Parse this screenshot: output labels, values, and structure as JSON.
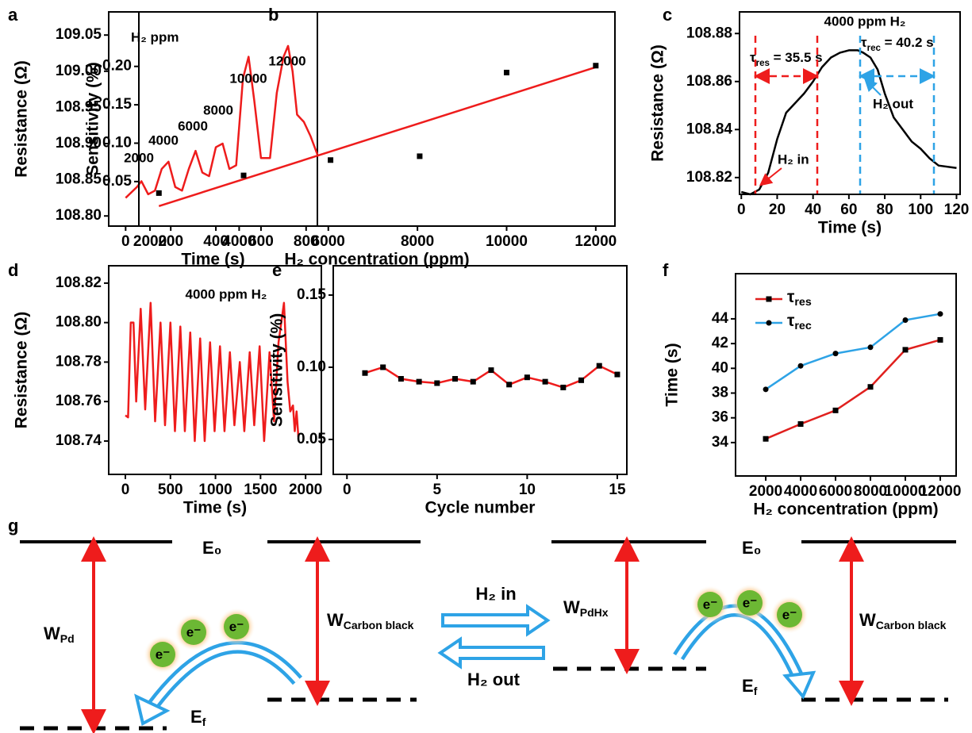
{
  "chart_data": [
    {
      "type": "line",
      "panel_label": "a",
      "xlabel": "Time (s)",
      "ylabel": "Resistance (Ω)",
      "x": [
        0,
        50,
        70,
        100,
        130,
        160,
        190,
        220,
        250,
        280,
        310,
        340,
        370,
        400,
        430,
        460,
        490,
        520,
        545,
        570,
        600,
        640,
        670,
        700,
        720,
        740,
        760,
        790,
        820,
        850
      ],
      "series": [
        {
          "color": "#ee1c1c",
          "values": [
            108.825,
            108.84,
            108.848,
            108.83,
            108.835,
            108.865,
            108.875,
            108.84,
            108.835,
            108.865,
            108.89,
            108.86,
            108.855,
            108.895,
            108.9,
            108.865,
            108.87,
            108.99,
            109.02,
            108.96,
            108.88,
            108.88,
            108.97,
            109.02,
            109.035,
            109.0,
            108.94,
            108.93,
            108.91,
            108.885
          ]
        }
      ],
      "xlim": [
        -75,
        850
      ],
      "xticks": [
        0,
        200,
        400,
        600,
        800
      ],
      "ylim": [
        108.786,
        109.082
      ],
      "yticks": [
        {
          "value": 108.8,
          "label": "108.80"
        },
        108.85,
        {
          "value": 108.9,
          "label": "108.90"
        },
        108.95,
        {
          "value": 109,
          "label": "109.00"
        },
        109.05
      ],
      "annotations": [
        "H₂ ppm",
        "2000",
        "4000",
        "6000",
        "8000",
        "10000",
        "12000"
      ]
    },
    {
      "type": "scatter",
      "panel_label": "b",
      "xlabel": "H₂ concentration (ppm)",
      "ylabel": "Sensitivity (%)",
      "x": [
        2200,
        4100,
        6050,
        8050,
        10000,
        12000
      ],
      "series": [
        {
          "color": "#000000",
          "marker": "square",
          "values": [
            0.035,
            0.058,
            0.078,
            0.083,
            0.192,
            0.201
          ]
        }
      ],
      "fit": {
        "color": "#ee1c1c",
        "x": [
          2200,
          12000
        ],
        "values": [
          0.018,
          0.199
        ]
      },
      "xlim": [
        1750,
        12430
      ],
      "xticks": [
        2000,
        4000,
        6000,
        8000,
        10000,
        12000
      ],
      "ylim": [
        -0.008,
        0.271
      ],
      "yticks": [
        0.05,
        {
          "value": 0.1,
          "label": "0.10"
        },
        0.15,
        {
          "value": 0.2,
          "label": "0.20"
        }
      ]
    },
    {
      "type": "line",
      "panel_label": "c",
      "xlabel": "Time (s)",
      "ylabel": "Resistance (Ω)",
      "x": [
        0,
        5,
        10,
        15,
        20,
        25,
        30,
        35,
        40,
        45,
        50,
        55,
        60,
        65,
        68,
        72,
        76,
        80,
        85,
        90,
        95,
        100,
        105,
        110,
        120
      ],
      "series": [
        {
          "color": "#000000",
          "values": [
            108.814,
            108.813,
            108.815,
            108.822,
            108.836,
            108.847,
            108.851,
            108.855,
            108.86,
            108.866,
            108.87,
            108.872,
            108.873,
            108.873,
            108.872,
            108.87,
            108.865,
            108.855,
            108.845,
            108.84,
            108.835,
            108.832,
            108.828,
            108.825,
            108.824
          ]
        }
      ],
      "xlim": [
        -1,
        122
      ],
      "xticks": [
        0,
        20,
        40,
        60,
        80,
        100,
        120
      ],
      "ylim": [
        108.813,
        108.889
      ],
      "yticks": [
        108.82,
        108.84,
        108.86,
        108.88
      ],
      "annotations": [
        {
          "base": "τ",
          "sub": "res",
          "tail": " = 35.5 s"
        },
        "4000 ppm H₂",
        {
          "base": "τ",
          "sub": "rec",
          "tail": " = 40.2 s"
        },
        "H₂ in",
        "H₂ out"
      ]
    },
    {
      "type": "line",
      "panel_label": "d",
      "xlabel": "Time (s)",
      "ylabel": "Resistance (Ω)",
      "x": [
        0,
        30,
        60,
        90,
        120,
        170,
        220,
        280,
        330,
        390,
        440,
        500,
        550,
        610,
        660,
        720,
        770,
        830,
        880,
        940,
        990,
        1050,
        1100,
        1160,
        1210,
        1270,
        1320,
        1380,
        1430,
        1490,
        1540,
        1600,
        1650,
        1700,
        1760,
        1800,
        1830,
        1860,
        1880,
        1900,
        1920
      ],
      "series": [
        {
          "color": "#ee1c1c",
          "values": [
            108.753,
            108.752,
            108.8,
            108.8,
            108.76,
            108.807,
            108.756,
            108.81,
            108.75,
            108.8,
            108.748,
            108.8,
            108.745,
            108.798,
            108.745,
            108.795,
            108.74,
            108.792,
            108.74,
            108.79,
            108.745,
            108.788,
            108.745,
            108.785,
            108.748,
            108.78,
            108.745,
            108.785,
            108.748,
            108.788,
            108.74,
            108.785,
            108.75,
            108.79,
            108.81,
            108.77,
            108.755,
            108.758,
            108.745,
            108.755,
            108.742
          ]
        }
      ],
      "xlim": [
        -185,
        2175
      ],
      "xticks": [
        0,
        500,
        1000,
        1500,
        2000
      ],
      "ylim": [
        108.7231,
        108.8288
      ],
      "yticks": [
        108.74,
        108.76,
        108.78,
        {
          "value": 108.8,
          "label": "108.80"
        },
        108.82
      ],
      "annotations": [
        "4000 ppm H₂"
      ]
    },
    {
      "type": "line",
      "panel_label": "e",
      "xlabel": "Cycle number",
      "ylabel": "Sensitivity (%)",
      "x": [
        1,
        2,
        3,
        4,
        5,
        6,
        7,
        8,
        9,
        10,
        11,
        12,
        13,
        14,
        15
      ],
      "series": [
        {
          "color": "#ee1c1c",
          "marker": "square",
          "marker_color": "#000000",
          "values": [
            0.096,
            0.1,
            0.092,
            0.09,
            0.089,
            0.092,
            0.09,
            0.098,
            0.088,
            0.093,
            0.09,
            0.086,
            0.091,
            0.101,
            0.095
          ]
        }
      ],
      "xlim": [
        -0.76,
        15.53
      ],
      "xticks": [
        0,
        5,
        10,
        15
      ],
      "ylim": [
        0.0258,
        0.1703
      ],
      "yticks": [
        0.05,
        {
          "value": 0.1,
          "label": "0.10"
        },
        0.15
      ]
    },
    {
      "type": "line",
      "panel_label": "f",
      "xlabel": "H₂ concentration (ppm)",
      "ylabel": "Time (s)",
      "x": [
        2000,
        4000,
        6000,
        8000,
        10000,
        12000
      ],
      "series": [
        {
          "name": {
            "base": "τ",
            "sub": "res"
          },
          "color": "#e0201e",
          "marker": "square",
          "marker_color": "#000000",
          "values": [
            34.3,
            35.5,
            36.6,
            38.5,
            41.5,
            42.3
          ]
        },
        {
          "name": {
            "base": "τ",
            "sub": "rec"
          },
          "color": "#2ea3e6",
          "marker": "circle",
          "marker_color": "#000000",
          "values": [
            38.3,
            40.2,
            41.2,
            41.7,
            43.9,
            44.4
          ]
        }
      ],
      "legend": "upper left",
      "xlim": [
        270,
        12910
      ],
      "xticks": [
        2000,
        4000,
        6000,
        8000,
        10000,
        12000
      ],
      "ylim": [
        31.3,
        47.65
      ],
      "yticks": [
        34,
        36,
        38,
        40,
        42,
        44
      ]
    }
  ],
  "diagram": {
    "panel_label": "g",
    "left": {
      "vacuum": "E₀",
      "fermi": {
        "base": "E",
        "sub": "f"
      },
      "work_pd": {
        "base": "W",
        "sub": "Pd"
      },
      "work_cb": {
        "base": "W",
        "sub": "Carbon black"
      },
      "electrons": [
        "e⁻",
        "e⁻",
        "e⁻"
      ]
    },
    "process": {
      "forward": "H₂ in",
      "backward": "H₂ out"
    },
    "right": {
      "vacuum": "E₀",
      "fermi": {
        "base": "E",
        "sub": "f"
      },
      "work_pdhx": {
        "base": "W",
        "sub": "PdHx"
      },
      "work_cb": {
        "base": "W",
        "sub": "Carbon black"
      },
      "electrons": [
        "e⁻",
        "e⁻",
        "e⁻"
      ]
    }
  }
}
